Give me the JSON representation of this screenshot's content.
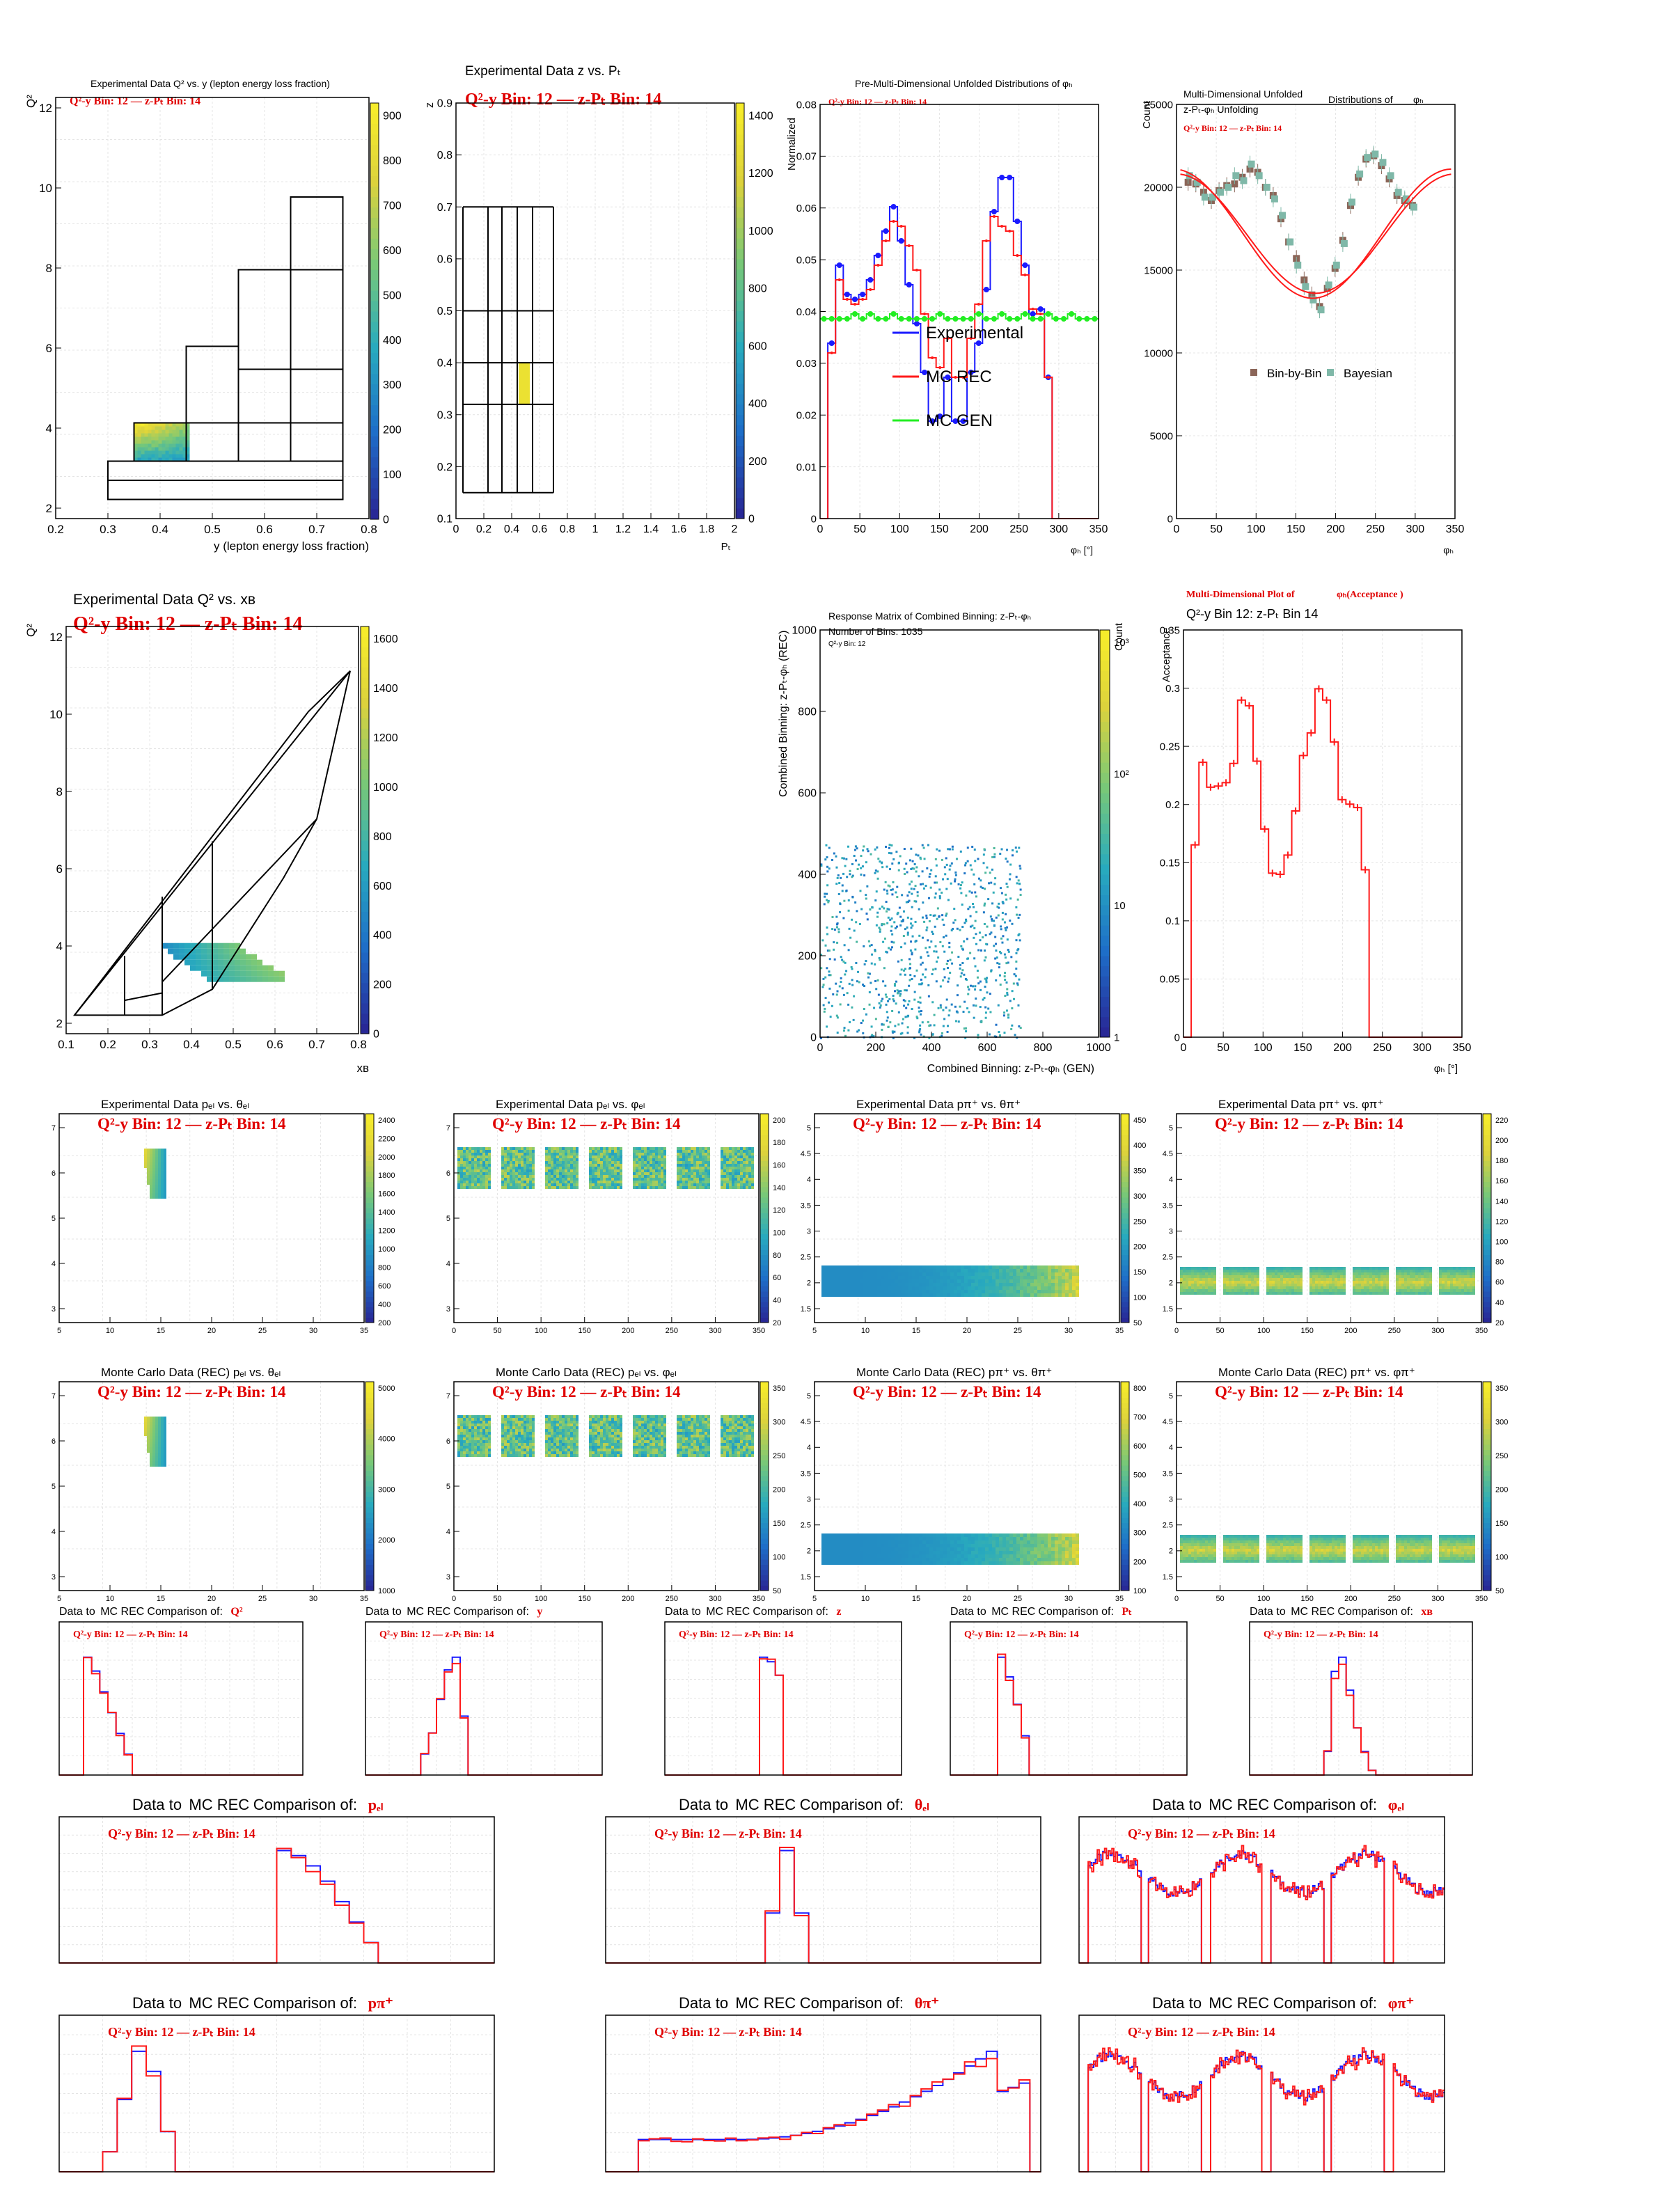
{
  "colors": {
    "data": "#1a1aff",
    "mc_rec": "#ff1a1a",
    "mc_gen": "#22ee22",
    "frame": "#000000",
    "bbb": "#8b6558",
    "bay": "#7fb8a8"
  },
  "bin_label": {
    "q2y": "Q²-y Bin: 12",
    "zpt": "z-Pₜ Bin: 14",
    "dash": "—"
  },
  "panels": {
    "q2y": {
      "title": "Experimental Data Q² vs. y (lepton energy loss fraction)",
      "xlabel": "y (lepton energy loss fraction)",
      "ylabel": "Q²",
      "xticks": [
        "0.2",
        "0.3",
        "0.4",
        "0.5",
        "0.6",
        "0.7",
        "0.8"
      ],
      "yticks": [
        "2",
        "4",
        "6",
        "8",
        "10",
        "12"
      ],
      "zticks": [
        "0",
        "100",
        "200",
        "300",
        "400",
        "500",
        "600",
        "700",
        "800",
        "900"
      ]
    },
    "zpt": {
      "title": "Experimental Data z vs. Pₜ",
      "xlabel": "Pₜ",
      "ylabel": "z",
      "xticks": [
        "0",
        "0.2",
        "0.4",
        "0.6",
        "0.8",
        "1",
        "1.2",
        "1.4",
        "1.6",
        "1.8",
        "2"
      ],
      "yticks": [
        "0.1",
        "0.2",
        "0.3",
        "0.4",
        "0.5",
        "0.6",
        "0.7",
        "0.8",
        "0.9"
      ],
      "zticks": [
        "0",
        "200",
        "400",
        "600",
        "800",
        "1000",
        "1200",
        "1400"
      ]
    },
    "q2xb": {
      "title": "Experimental Data Q² vs. xʙ",
      "xlabel": "xʙ",
      "ylabel": "Q²",
      "xticks": [
        "0.1",
        "0.2",
        "0.3",
        "0.4",
        "0.5",
        "0.6",
        "0.7",
        "0.8"
      ],
      "yticks": [
        "2",
        "4",
        "6",
        "8",
        "10",
        "12"
      ],
      "zticks": [
        "0",
        "200",
        "400",
        "600",
        "800",
        "1000",
        "1200",
        "1400",
        "1600"
      ]
    },
    "resp": {
      "title": "Response Matrix of Combined Binning: z-Pₜ-φₕ",
      "note1": "Number of Bins: 1035",
      "note2": "Q²-y Bin: 12",
      "xlabel": "Combined Binning: z-Pₜ-φₕ (GEN)",
      "ylabel": "Combined Binning: z-Pₜ-φₕ (REC)",
      "zlabel": "Count",
      "xticks": [
        "0",
        "200",
        "400",
        "600",
        "800",
        "1000"
      ],
      "yticks": [
        "0",
        "200",
        "400",
        "600",
        "800",
        "1000"
      ],
      "zticks": [
        "1",
        "10",
        "10²",
        "10³"
      ]
    },
    "prem": {
      "title": "Pre-Multi-Dimensional Unfolded Distributions of φₕ",
      "ylabel": "Normalized",
      "xlabel": "φₕ [°]",
      "legend": [
        "Experimental",
        "MC REC",
        "MC GEN"
      ],
      "xticks": [
        "0",
        "50",
        "100",
        "150",
        "200",
        "250",
        "300",
        "350"
      ],
      "yticks": [
        "0",
        "0.01",
        "0.02",
        "0.03",
        "0.04",
        "0.05",
        "0.06",
        "0.07",
        "0.08"
      ]
    },
    "mdu": {
      "title_a": "Multi-Dimensional Unfolded",
      "title_b": "Distributions of",
      "title_c": "φₕ",
      "title_d": "z-Pₜ-φₕ Unfolding",
      "ylabel": "Count",
      "xlabel": "φₕ",
      "legend": [
        "Bin-by-Bin",
        "Bayesian"
      ],
      "xticks": [
        "0",
        "50",
        "100",
        "150",
        "200",
        "250",
        "300",
        "350"
      ],
      "yticks": [
        "0",
        "5000",
        "10000",
        "15000",
        "20000",
        "25000"
      ]
    },
    "acc": {
      "title": "Multi-Dimensional Plot of",
      "title_b": "φₕ(Acceptance )",
      "sub": "Q²-y Bin 12: z-Pₜ Bin 14",
      "ylabel": "Acceptance",
      "xlabel": "φₕ [°]",
      "xticks": [
        "0",
        "50",
        "100",
        "150",
        "200",
        "250",
        "300",
        "350"
      ],
      "yticks": [
        "0",
        "0.05",
        "0.1",
        "0.15",
        "0.2",
        "0.25",
        "0.3",
        "0.35"
      ]
    }
  },
  "kin_titles": [
    "Experimental Data pₑₗ vs. θₑₗ",
    "Experimental Data pₑₗ vs. φₑₗ",
    "Experimental Data pπ⁺ vs. θπ⁺",
    "Experimental Data pπ⁺ vs. φπ⁺",
    "Monte Carlo Data (REC) pₑₗ vs. θₑₗ",
    "Monte Carlo Data (REC) pₑₗ vs. φₑₗ",
    "Monte Carlo Data (REC) pπ⁺ vs. θπ⁺",
    "Monte Carlo Data (REC) pπ⁺ vs. φπ⁺"
  ],
  "kin_zticks": [
    [
      "200",
      "400",
      "600",
      "800",
      "1000",
      "1200",
      "1400",
      "1600",
      "1800",
      "2000",
      "2200",
      "2400"
    ],
    [
      "20",
      "40",
      "60",
      "80",
      "100",
      "120",
      "140",
      "160",
      "180",
      "200"
    ],
    [
      "50",
      "100",
      "150",
      "200",
      "250",
      "300",
      "350",
      "400",
      "450"
    ],
    [
      "20",
      "40",
      "60",
      "80",
      "100",
      "120",
      "140",
      "160",
      "180",
      "200",
      "220"
    ],
    [
      "1000",
      "2000",
      "3000",
      "4000",
      "5000"
    ],
    [
      "50",
      "100",
      "150",
      "200",
      "250",
      "300",
      "350"
    ],
    [
      "100",
      "200",
      "300",
      "400",
      "500",
      "600",
      "700",
      "800"
    ],
    [
      "50",
      "100",
      "150",
      "200",
      "250",
      "300",
      "350"
    ]
  ],
  "cmp": {
    "prefix_data": "Data",
    "to": "to",
    "prefix_mc": "MC REC",
    "comparison": "Comparison of:",
    "vars": [
      "Q²",
      "y",
      "z",
      "Pₜ",
      "xʙ",
      "pₑₗ",
      "θₑₗ",
      "φₑₗ",
      "pπ⁺",
      "θπ⁺",
      "φπ⁺"
    ]
  },
  "chart_data": [
    {
      "type": "line",
      "title": "Pre-Multi-Dimensional Unfolded Distributions of φₕ",
      "xlabel": "φₕ [°]",
      "ylabel": "Normalized",
      "xlim": [
        0,
        360
      ],
      "ylim": [
        0,
        0.085
      ],
      "x": [
        5,
        15,
        25,
        35,
        45,
        55,
        65,
        75,
        85,
        95,
        105,
        115,
        125,
        135,
        145,
        155,
        165,
        175,
        185,
        195,
        205,
        215,
        225,
        235,
        245,
        255,
        265,
        275,
        285,
        295,
        305,
        315,
        325,
        335,
        345,
        355
      ],
      "series": [
        {
          "name": "Experimental",
          "values": [
            0,
            0.036,
            0.052,
            0.046,
            0.045,
            0.046,
            0.049,
            0.054,
            0.059,
            0.064,
            0.057,
            0.048,
            0.04,
            0.03,
            0.02,
            0.021,
            0.029,
            0.02,
            0.02,
            0.03,
            0.036,
            0.047,
            0.063,
            0.07,
            0.07,
            0.061,
            0.052,
            0.042,
            0.043,
            0.029,
            0.0,
            0.0,
            0.0,
            0.0,
            0.0,
            0.0
          ]
        },
        {
          "name": "MC REC",
          "values": [
            0,
            0.034,
            0.049,
            0.045,
            0.044,
            0.045,
            0.047,
            0.052,
            0.057,
            0.061,
            0.06,
            0.056,
            0.051,
            0.042,
            0.033,
            0.031,
            0.037,
            0.029,
            0.029,
            0.037,
            0.044,
            0.057,
            0.062,
            0.06,
            0.059,
            0.054,
            0.05,
            0.043,
            0.042,
            0.029,
            0.0,
            0.0,
            0.0,
            0.0,
            0.0,
            0.0
          ]
        },
        {
          "name": "MC GEN",
          "values": [
            0.041,
            0.041,
            0.041,
            0.041,
            0.042,
            0.041,
            0.042,
            0.041,
            0.041,
            0.042,
            0.041,
            0.041,
            0.041,
            0.041,
            0.041,
            0.042,
            0.041,
            0.041,
            0.041,
            0.041,
            0.042,
            0.041,
            0.041,
            0.042,
            0.041,
            0.041,
            0.042,
            0.041,
            0.041,
            0.042,
            0.041,
            0.041,
            0.042,
            0.041,
            0.041,
            0.041
          ]
        }
      ]
    },
    {
      "type": "scatter",
      "title": "Multi-Dimensional Unfolded Distributions of φₕ",
      "xlabel": "φₕ",
      "ylabel": "Count",
      "xlim": [
        0,
        360
      ],
      "ylim": [
        0,
        25000
      ],
      "x": [
        5,
        15,
        25,
        35,
        45,
        55,
        65,
        75,
        85,
        95,
        105,
        115,
        125,
        135,
        145,
        155,
        165,
        175,
        185,
        195,
        205,
        215,
        225,
        235,
        245,
        255,
        265,
        275,
        285,
        295,
        305,
        315,
        325,
        335,
        345,
        355
      ],
      "series": [
        {
          "name": "Bin-by-Bin",
          "values": [
            0,
            20300,
            20200,
            19700,
            19200,
            19800,
            20100,
            20200,
            20600,
            21100,
            20900,
            20000,
            19500,
            18100,
            16700,
            15700,
            14400,
            13500,
            12800,
            13900,
            15100,
            16800,
            18900,
            20600,
            21700,
            21900,
            21300,
            20500,
            19500,
            19200,
            18900,
            0,
            0,
            0,
            0,
            0
          ]
        },
        {
          "name": "Bayesian",
          "values": [
            0,
            20700,
            20300,
            19400,
            19400,
            19700,
            20000,
            20700,
            20400,
            21400,
            20700,
            20000,
            19300,
            18300,
            16700,
            15300,
            14000,
            13200,
            12600,
            14100,
            15300,
            16600,
            19100,
            20800,
            21800,
            22000,
            21500,
            20700,
            19700,
            19300,
            18800,
            0,
            0,
            0,
            0,
            0
          ]
        }
      ]
    },
    {
      "type": "bar",
      "title": "Multi-Dimensional Plot of φₕ(Acceptance )",
      "xlabel": "φₕ [°]",
      "ylabel": "Acceptance",
      "xlim": [
        0,
        360
      ],
      "ylim": [
        0,
        0.36
      ],
      "x": [
        5,
        15,
        25,
        35,
        45,
        55,
        65,
        75,
        85,
        95,
        105,
        115,
        125,
        135,
        145,
        155,
        165,
        175,
        185,
        195,
        205,
        215,
        225,
        235,
        245,
        255,
        265,
        275,
        285,
        295,
        305,
        315,
        325,
        335,
        345,
        355
      ],
      "values": [
        0.0,
        0.17,
        0.243,
        0.221,
        0.222,
        0.225,
        0.242,
        0.298,
        0.293,
        0.244,
        0.184,
        0.145,
        0.144,
        0.161,
        0.2,
        0.249,
        0.269,
        0.308,
        0.298,
        0.261,
        0.21,
        0.206,
        0.203,
        0.148,
        0.0,
        0,
        0,
        0,
        0,
        0,
        0,
        0,
        0,
        0,
        0,
        0
      ]
    }
  ]
}
